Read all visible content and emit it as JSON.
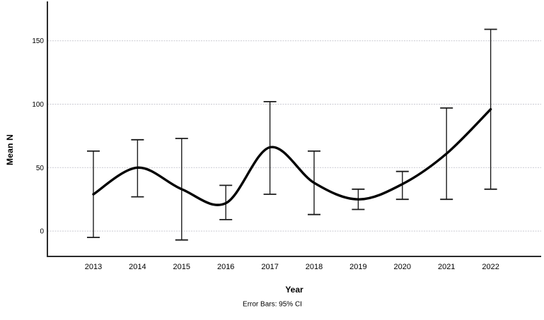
{
  "chart_data": {
    "type": "line",
    "title": "",
    "xlabel": "Year",
    "ylabel": "Mean N",
    "footnote": "Error Bars: 95% CI",
    "categories": [
      "2013",
      "2014",
      "2015",
      "2016",
      "2017",
      "2018",
      "2019",
      "2020",
      "2021",
      "2022"
    ],
    "series": [
      {
        "name": "Mean N",
        "values": [
          29,
          50,
          33,
          22,
          66,
          38,
          25,
          37,
          61,
          96
        ]
      }
    ],
    "error_bars": {
      "label": "95% CI",
      "low": [
        -5,
        27,
        -7,
        9,
        29,
        13,
        17,
        25,
        25,
        33
      ],
      "high": [
        63,
        72,
        73,
        36,
        102,
        63,
        33,
        47,
        97,
        159
      ]
    },
    "ylim": [
      -20,
      181
    ],
    "yticks": [
      0,
      50,
      100,
      150
    ],
    "grid": true,
    "legend": "none",
    "line_style": "smooth-spline",
    "colors": {
      "line": "#000000",
      "error_bar": "#1c1c1c",
      "grid": "#c9c9d1",
      "axis": "#2b2b2b",
      "text": "#000000",
      "background": "#ffffff"
    }
  }
}
